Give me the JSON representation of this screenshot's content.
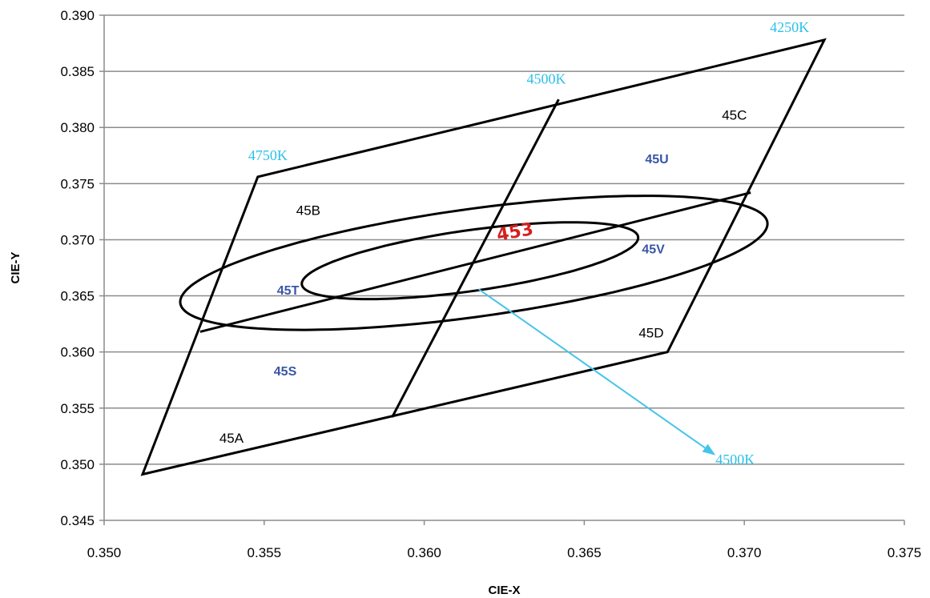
{
  "chart_data": {
    "type": "scatter",
    "title": "",
    "xlabel": "CIE-X",
    "ylabel": "CIE-Y",
    "xlim": [
      0.35,
      0.375
    ],
    "ylim": [
      0.345,
      0.39
    ],
    "xticks": [
      "0.350",
      "0.355",
      "0.360",
      "0.365",
      "0.370",
      "0.375"
    ],
    "yticks": [
      "0.345",
      "0.350",
      "0.355",
      "0.360",
      "0.365",
      "0.370",
      "0.375",
      "0.380",
      "0.385",
      "0.390"
    ],
    "grid": "horizontal",
    "colors": {
      "outline": "#000000",
      "grid": "#8c8c8c",
      "cct_text": "#2cc0ea",
      "bin_text": "#3a55a6",
      "center_text": "#d42020",
      "arrow": "#44c4e8"
    },
    "quadrangle": {
      "name": "",
      "points": [
        [
          0.3512,
          0.3491
        ],
        [
          0.3548,
          0.3756
        ],
        [
          0.3725,
          0.3878
        ],
        [
          0.3676,
          0.36
        ]
      ]
    },
    "dividers": [
      {
        "points": [
          [
            0.353,
            0.3618
          ],
          [
            0.3702,
            0.3742
          ]
        ]
      },
      {
        "points": [
          [
            0.359,
            0.3542
          ],
          [
            0.3642,
            0.3825
          ]
        ]
      }
    ],
    "ellipses": [
      {
        "name": "outer",
        "center": [
          0.36155,
          0.36794
        ],
        "semi_major": 0.01,
        "semi_minor": 0.00445,
        "angle_deg": 26.4
      },
      {
        "name": "inner",
        "center": [
          0.36143,
          0.36813
        ],
        "semi_major": 0.00575,
        "semi_minor": 0.0025,
        "angle_deg": 26.8
      }
    ],
    "cct_labels": [
      {
        "text": "4250K",
        "x": 0.3708,
        "y": 0.3885
      },
      {
        "text": "4500K",
        "x": 0.3632,
        "y": 0.3839
      },
      {
        "text": "4750K",
        "x": 0.3545,
        "y": 0.3771
      },
      {
        "text": "4500K",
        "x": 0.3691,
        "y": 0.35
      }
    ],
    "region_labels": [
      {
        "text": "45A",
        "x": 0.3536,
        "y": 0.3519
      },
      {
        "text": "45B",
        "x": 0.356,
        "y": 0.3722
      },
      {
        "text": "45C",
        "x": 0.3693,
        "y": 0.3807
      },
      {
        "text": "45D",
        "x": 0.3667,
        "y": 0.3613
      }
    ],
    "bin_labels": [
      {
        "text": "45S",
        "x": 0.3553,
        "y": 0.3579
      },
      {
        "text": "45T",
        "x": 0.3554,
        "y": 0.3651
      },
      {
        "text": "45U",
        "x": 0.3669,
        "y": 0.3768
      },
      {
        "text": "45V",
        "x": 0.3668,
        "y": 0.3688
      }
    ],
    "center_label": {
      "text": "453",
      "x": 0.3623,
      "y": 0.3699,
      "rotate_deg": -10
    },
    "arrow": {
      "from": [
        0.3617,
        0.3656
      ],
      "to": [
        0.3691,
        0.3508
      ]
    }
  }
}
